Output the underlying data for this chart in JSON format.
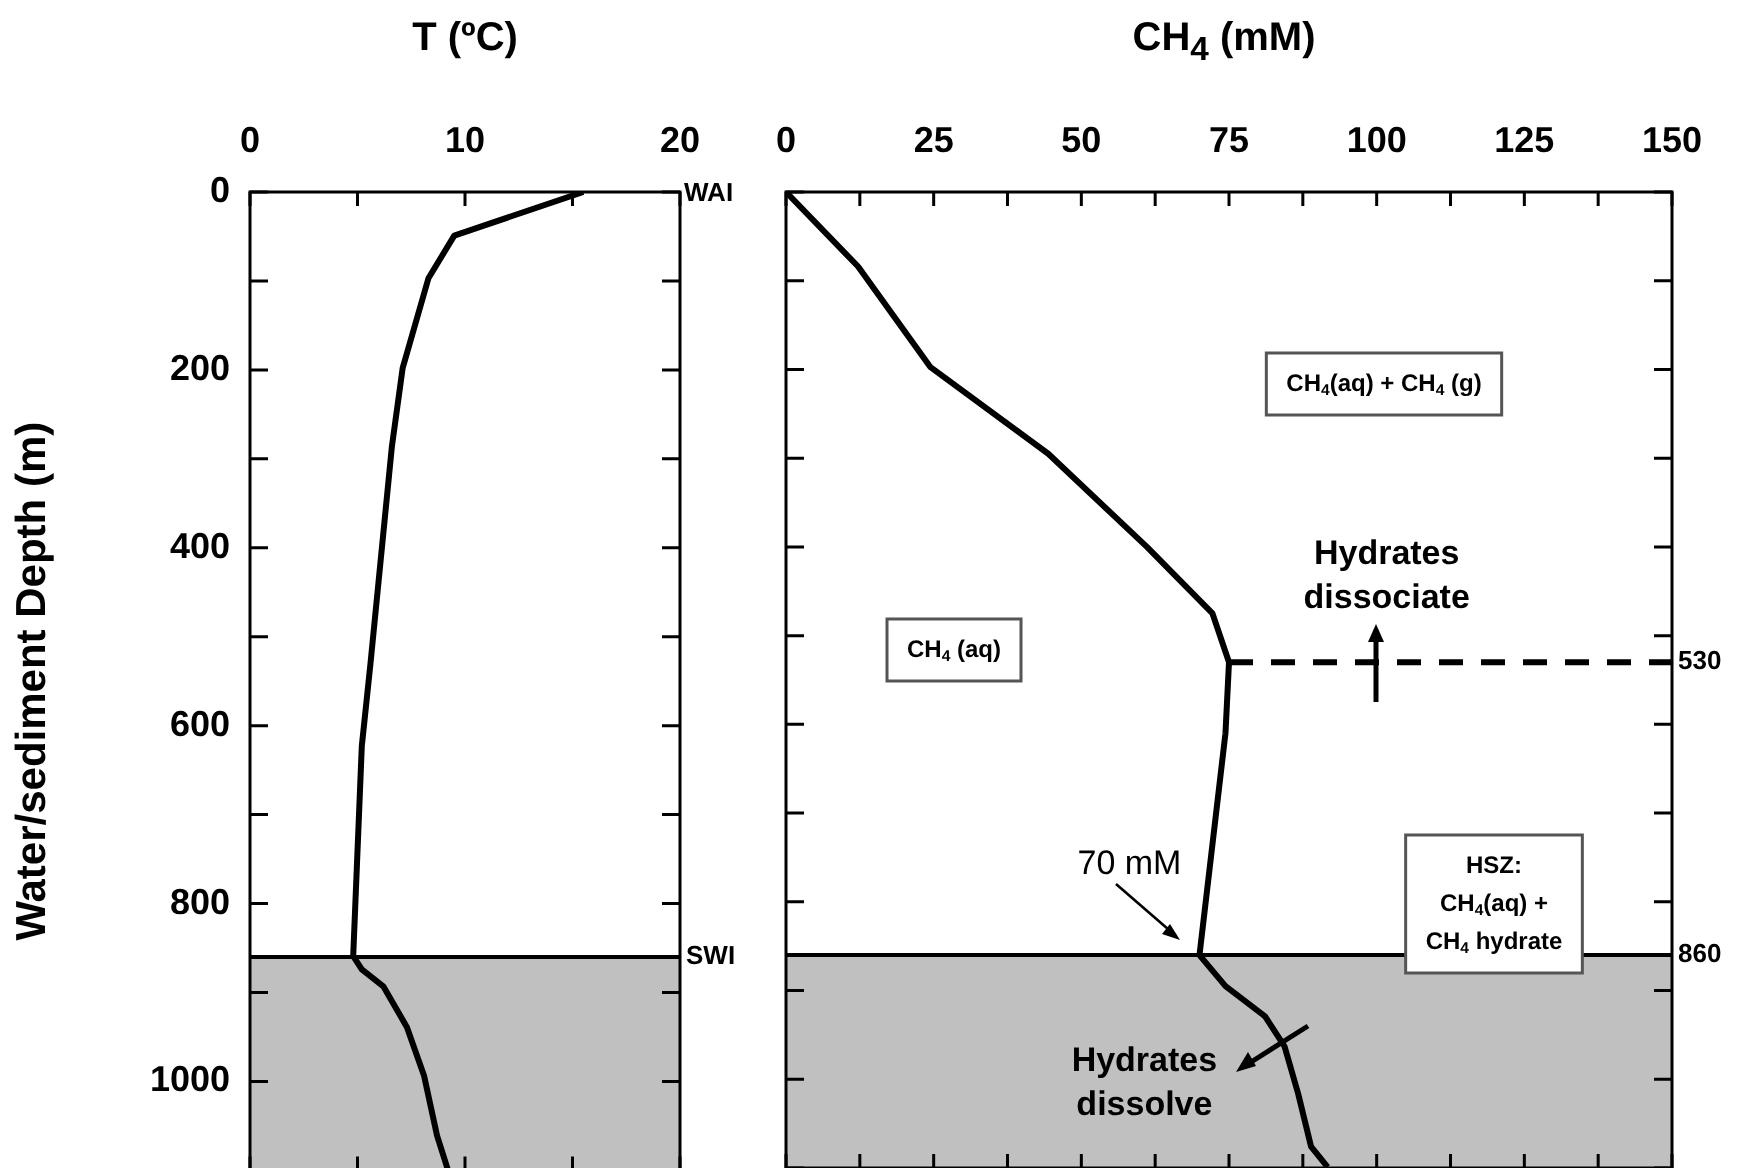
{
  "chart_data": [
    {
      "type": "line",
      "title": "T (ºC)",
      "ylabel": "Water/sediment Depth (m)",
      "xlim": [
        0,
        20
      ],
      "xticks": [
        0,
        {
          "value": 5,
          "label": null
        },
        10,
        {
          "value": 15,
          "label": null
        },
        20
      ],
      "ylim": [
        1100,
        0
      ],
      "yticks": [
        0,
        {
          "value": 100,
          "label": null
        },
        200,
        {
          "value": 300,
          "label": null
        },
        400,
        {
          "value": 500,
          "label": null
        },
        600,
        {
          "value": 700,
          "label": null
        },
        800,
        {
          "value": 900,
          "label": null
        },
        1000,
        {
          "value": 1100,
          "label": null
        }
      ],
      "series": [
        {
          "color": "#000000",
          "x": [
            15.5,
            9.5,
            8.3,
            7.1,
            6.6,
            5.6,
            5.2,
            4.8,
            5.2,
            6.2,
            7.3,
            8.1,
            8.7,
            9.2
          ],
          "values": [
            0,
            49,
            97,
            198,
            286,
            531,
            623,
            859,
            874,
            893,
            939,
            994,
            1061,
            1099
          ]
        }
      ],
      "bands": [
        {
          "axis": "y",
          "from": 860,
          "to": 1100,
          "color": "#c0c0c0"
        }
      ],
      "ref_lines": [
        {
          "axis": "y",
          "value": 860,
          "color": "#000000"
        }
      ],
      "annotations": [
        "WAI",
        {
          "text": "SWI",
          "x": 20,
          "y": 860
        }
      ]
    },
    {
      "type": "line",
      "title": "CH$_{4}$ (mM)",
      "xlim": [
        0,
        150
      ],
      "xticks": [
        0,
        {
          "value": 12.5,
          "label": null
        },
        25,
        {
          "value": 37.5,
          "label": null
        },
        50,
        {
          "value": 62.5,
          "label": null
        },
        75,
        {
          "value": 87.5,
          "label": null
        },
        100,
        {
          "value": 112.5,
          "label": null
        },
        125,
        {
          "value": 137.5,
          "label": null
        },
        150
      ],
      "ylim": [
        1100,
        0
      ],
      "yticks": [
        0,
        {
          "value": 100,
          "label": null
        },
        {
          "value": 200,
          "label": null
        },
        {
          "value": 300,
          "label": null
        },
        {
          "value": 400,
          "label": null
        },
        {
          "value": 500,
          "label": null
        },
        {
          "value": 600,
          "label": null
        },
        {
          "value": 700,
          "label": null
        },
        {
          "value": 800,
          "label": null
        },
        {
          "value": 900,
          "label": null
        },
        {
          "value": 1000,
          "label": null
        },
        {
          "value": 1100,
          "label": null
        }
      ],
      "tick_labels": "x",
      "series": [
        {
          "color": "#000000",
          "x": [
            0,
            12.2,
            24.4,
            44.4,
            61.1,
            72.2,
            75,
            74.4,
            70,
            74.4,
            81.1,
            84.4,
            86.7,
            88.9,
            91.7
          ],
          "values": [
            0,
            84,
            197,
            295,
            400,
            475,
            530,
            610,
            860,
            895,
            929,
            963,
            1016,
            1076,
            1099
          ]
        },
        {
          "color": "#000000",
          "line_style": "dashed",
          "x": [
            75,
            150
          ],
          "values": [
            530,
            530
          ]
        }
      ],
      "bands": [
        {
          "axis": "y",
          "from": 860,
          "to": 1100,
          "color": "#c0c0c0"
        }
      ],
      "ref_lines": [
        {
          "axis": "y",
          "value": 860,
          "color": "#000000",
          "label": "860"
        }
      ],
      "annotations": [
        {
          "text": "530",
          "x": 150,
          "y": 530
        },
        "CH$_{4}$ (aq)",
        "CH$_{4}$(aq) + CH$_{4}$ (g)",
        "HSZ:\nCH$_{4}$(aq) +\nCH$_{4}$ hydrate",
        {
          "text": "Hydrates\ndissociate",
          "x": 100,
          "y": 530
        },
        {
          "text": "70 mM",
          "x": 70,
          "y": 860
        },
        {
          "text": "Hydrates\ndissolve",
          "x": 83.7,
          "y": 960
        }
      ]
    }
  ]
}
